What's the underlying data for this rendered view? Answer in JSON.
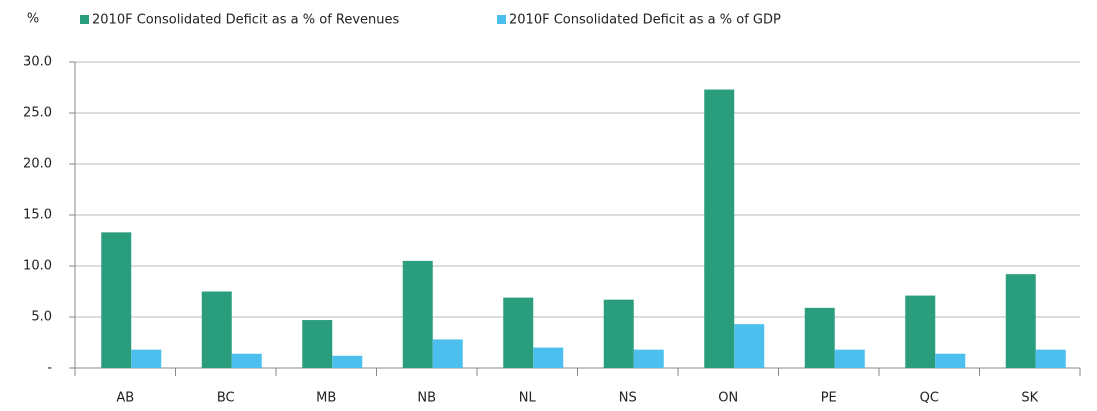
{
  "chart_data": {
    "type": "bar",
    "y_label": "%",
    "categories": [
      "AB",
      "BC",
      "MB",
      "NB",
      "NL",
      "NS",
      "ON",
      "PE",
      "QC",
      "SK"
    ],
    "series": [
      {
        "name": "2010F Consolidated Deficit as a % of Revenues",
        "color": "#2a9d7c",
        "values": [
          13.3,
          7.5,
          4.7,
          10.5,
          6.9,
          6.7,
          27.3,
          5.9,
          7.1,
          9.2
        ]
      },
      {
        "name": "2010F Consolidated Deficit as a % of GDP",
        "color": "#4dbfef",
        "values": [
          1.8,
          1.4,
          1.2,
          2.8,
          2.0,
          1.8,
          4.3,
          1.8,
          1.4,
          1.8
        ]
      }
    ],
    "ylim": [
      0,
      30
    ],
    "yticks": [
      {
        "value": 0,
        "label": "-"
      },
      {
        "value": 5,
        "label": "5.0"
      },
      {
        "value": 10,
        "label": "10.0"
      },
      {
        "value": 15,
        "label": "15.0"
      },
      {
        "value": 20,
        "label": "20.0"
      },
      {
        "value": 25,
        "label": "25.0"
      },
      {
        "value": 30,
        "label": "30.0"
      }
    ],
    "grid": true
  }
}
